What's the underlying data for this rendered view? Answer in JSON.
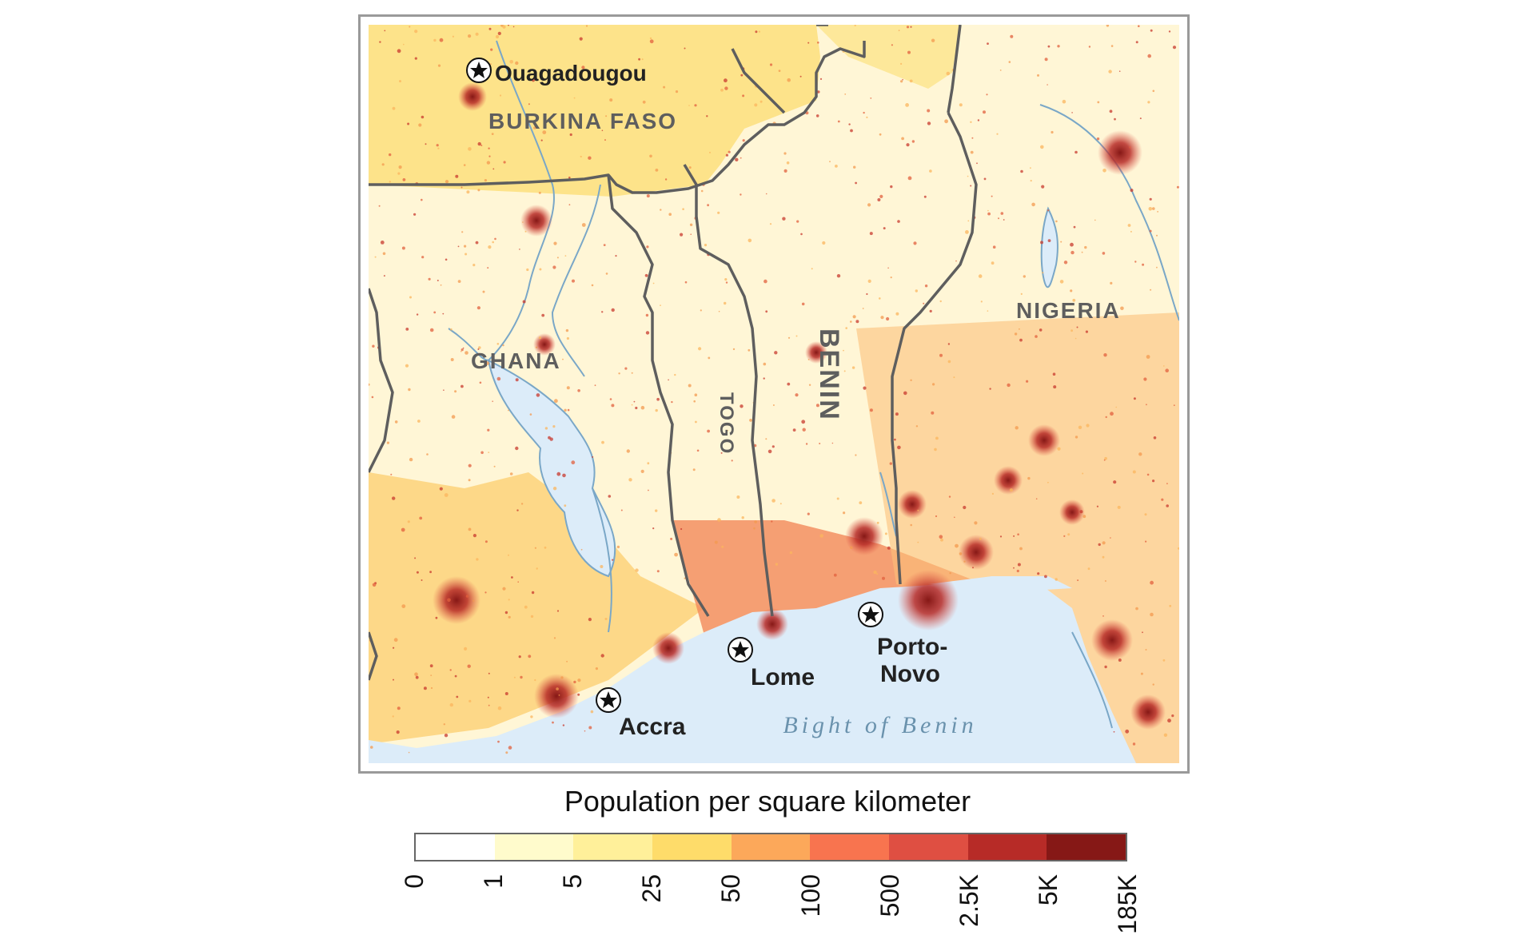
{
  "map": {
    "countries": [
      "BURKINA FASO",
      "GHANA",
      "TOGO",
      "BENIN",
      "NIGERIA"
    ],
    "cities": [
      "Ouagadougou",
      "Accra",
      "Lome",
      "Porto-",
      "Novo"
    ],
    "sea": "Bight of Benin",
    "city_marker_icon": "star-in-circle-icon"
  },
  "legend": {
    "title": "Population per square kilometer",
    "ticks": [
      "0",
      "1",
      "5",
      "25",
      "50",
      "100",
      "500",
      "2.5K",
      "5K",
      "185K"
    ],
    "colors": [
      "#ffffff",
      "#fffbcc",
      "#fff09a",
      "#fedc6a",
      "#fca85a",
      "#f8744f",
      "#df4f42",
      "#b72b27",
      "#861816"
    ]
  },
  "colors": {
    "water": "#dcecf9",
    "river": "#7aa7c7",
    "border": "#5e5e5e",
    "sparse_land": "#fff6d6",
    "dense_land": "#fdd971"
  }
}
